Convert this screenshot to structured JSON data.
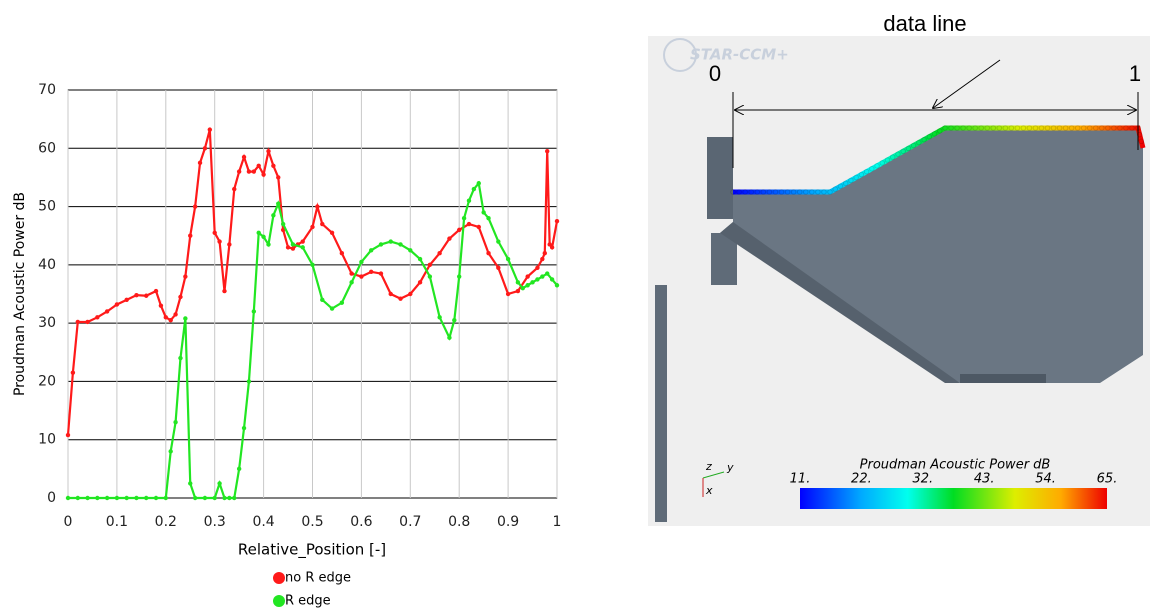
{
  "chart_data": {
    "type": "line",
    "xlabel": "Relative_Position [-]",
    "ylabel": "Proudman Acoustic Power dB",
    "xlim": [
      0,
      1
    ],
    "xticks": [
      0,
      0.1,
      0.2,
      0.3,
      0.4,
      0.5,
      0.6,
      0.7,
      0.8,
      0.9,
      1
    ],
    "ylim": [
      0,
      70
    ],
    "yticks": [
      0,
      10,
      20,
      30,
      40,
      50,
      60,
      70
    ],
    "grid": true,
    "legend": "bottom",
    "series": [
      {
        "name": "no R edge",
        "color": "#ff1a1a",
        "x": [
          0,
          0.01,
          0.02,
          0.04,
          0.06,
          0.08,
          0.1,
          0.12,
          0.14,
          0.16,
          0.18,
          0.19,
          0.2,
          0.21,
          0.22,
          0.23,
          0.24,
          0.25,
          0.26,
          0.27,
          0.28,
          0.29,
          0.3,
          0.31,
          0.32,
          0.33,
          0.34,
          0.35,
          0.36,
          0.37,
          0.38,
          0.39,
          0.4,
          0.41,
          0.42,
          0.43,
          0.44,
          0.45,
          0.46,
          0.47,
          0.48,
          0.5,
          0.51,
          0.52,
          0.54,
          0.56,
          0.58,
          0.6,
          0.62,
          0.64,
          0.66,
          0.68,
          0.7,
          0.72,
          0.74,
          0.76,
          0.78,
          0.8,
          0.82,
          0.84,
          0.86,
          0.88,
          0.9,
          0.92,
          0.94,
          0.96,
          0.97,
          0.975,
          0.98,
          0.985,
          0.99,
          1
        ],
        "values": [
          10.8,
          21.5,
          30.2,
          30.2,
          31,
          32,
          33.2,
          34,
          34.8,
          34.7,
          35.5,
          33,
          31,
          30.5,
          31.5,
          34.5,
          38,
          45,
          50,
          57.5,
          60,
          63.2,
          45.5,
          44,
          35.5,
          43.5,
          53,
          56,
          58.5,
          56,
          56,
          57,
          55.5,
          59.5,
          57,
          55,
          46,
          43,
          42.8,
          43.5,
          44,
          46.5,
          50,
          47,
          45.5,
          42,
          38.5,
          38,
          38.8,
          38.5,
          35,
          34.2,
          35,
          37,
          40,
          42,
          44.5,
          46,
          47,
          46.5,
          42,
          39.5,
          35,
          35.5,
          38,
          39.5,
          41,
          42,
          59.5,
          43.5,
          43,
          47.5
        ]
      },
      {
        "name": "R edge",
        "color": "#22e622",
        "x": [
          0,
          0.02,
          0.04,
          0.06,
          0.08,
          0.1,
          0.12,
          0.14,
          0.16,
          0.18,
          0.2,
          0.21,
          0.22,
          0.23,
          0.24,
          0.25,
          0.26,
          0.28,
          0.3,
          0.31,
          0.32,
          0.33,
          0.34,
          0.35,
          0.36,
          0.37,
          0.38,
          0.39,
          0.4,
          0.41,
          0.42,
          0.43,
          0.44,
          0.46,
          0.48,
          0.5,
          0.52,
          0.54,
          0.56,
          0.58,
          0.6,
          0.62,
          0.64,
          0.66,
          0.68,
          0.7,
          0.72,
          0.74,
          0.76,
          0.78,
          0.79,
          0.8,
          0.81,
          0.82,
          0.83,
          0.84,
          0.85,
          0.86,
          0.88,
          0.9,
          0.92,
          0.93,
          0.94,
          0.95,
          0.96,
          0.97,
          0.98,
          0.99,
          1
        ],
        "values": [
          0,
          0,
          0,
          0,
          0,
          0,
          0,
          0,
          0,
          0,
          0,
          8,
          13,
          24,
          30.8,
          2.5,
          0,
          0,
          0,
          2.5,
          0,
          0,
          0,
          5,
          12,
          20,
          32,
          45.5,
          44.8,
          43.5,
          48.5,
          50.5,
          47,
          43.5,
          43,
          40,
          34,
          32.5,
          33.5,
          37,
          40.5,
          42.5,
          43.5,
          44,
          43.5,
          42.5,
          41,
          38,
          31,
          27.5,
          30.5,
          38,
          48,
          51,
          53,
          54,
          49,
          48,
          44,
          41,
          37,
          36,
          36.5,
          37,
          37.5,
          38,
          38.5,
          37.5,
          36.5
        ]
      }
    ]
  },
  "figure": {
    "annotation": "data line",
    "start_label": "0",
    "end_label": "1",
    "logo": "STAR-CCM+",
    "colorbar": {
      "title": "Proudman Acoustic Power dB",
      "labels": [
        "11.",
        "22.",
        "32.",
        "43.",
        "54.",
        "65."
      ]
    },
    "triad": [
      "z",
      "y",
      "x"
    ]
  }
}
